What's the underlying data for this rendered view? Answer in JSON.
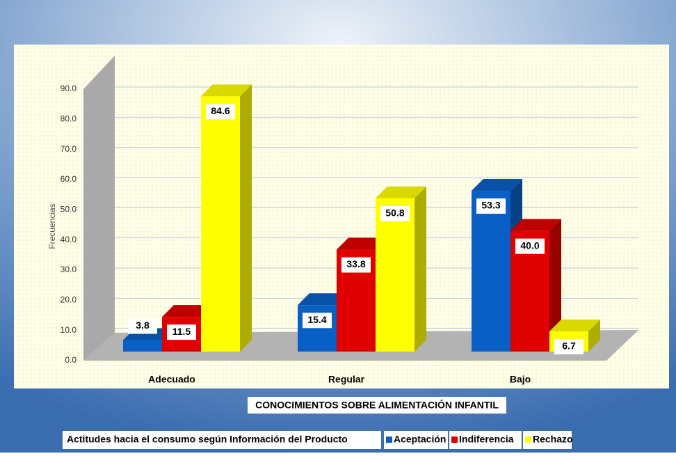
{
  "chart_data": {
    "type": "bar3d",
    "xlabel": "CONOCIMIENTOS SOBRE ALIMENTACIÓN INFANTIL",
    "ylabel": "Frecuencias",
    "legend_title": "Actitudes hacia el consumo según Información del Producto",
    "categories": [
      "Adecuado",
      "Regular",
      "Bajo"
    ],
    "series": [
      {
        "name": "Aceptación",
        "color": "#0a5fc4",
        "values": [
          3.8,
          15.4,
          53.3
        ],
        "value_labels": [
          "3.8",
          "15.4",
          "53.3"
        ]
      },
      {
        "name": "Indiferencia",
        "color": "#e00000",
        "values": [
          11.5,
          33.8,
          40.0
        ],
        "value_labels": [
          "11.5",
          "33.8",
          "40.0"
        ]
      },
      {
        "name": "Rechazo",
        "color": "#ffff00",
        "values": [
          84.6,
          50.8,
          6.7
        ],
        "value_labels": [
          "84.6",
          "50.8",
          "6.7"
        ]
      }
    ],
    "ylim": [
      0,
      90
    ],
    "yticks": [
      {
        "value": 0,
        "label": "0.0"
      },
      {
        "value": 10,
        "label": "10.0"
      },
      {
        "value": 20,
        "label": "20.0"
      },
      {
        "value": 30,
        "label": "30.0"
      },
      {
        "value": 40,
        "label": "40.0"
      },
      {
        "value": 50,
        "label": "50.0"
      },
      {
        "value": 60,
        "label": "60.0"
      },
      {
        "value": 70,
        "label": "70.0"
      },
      {
        "value": 80,
        "label": "80.0"
      },
      {
        "value": 90,
        "label": "90.0"
      }
    ],
    "grid": true
  }
}
